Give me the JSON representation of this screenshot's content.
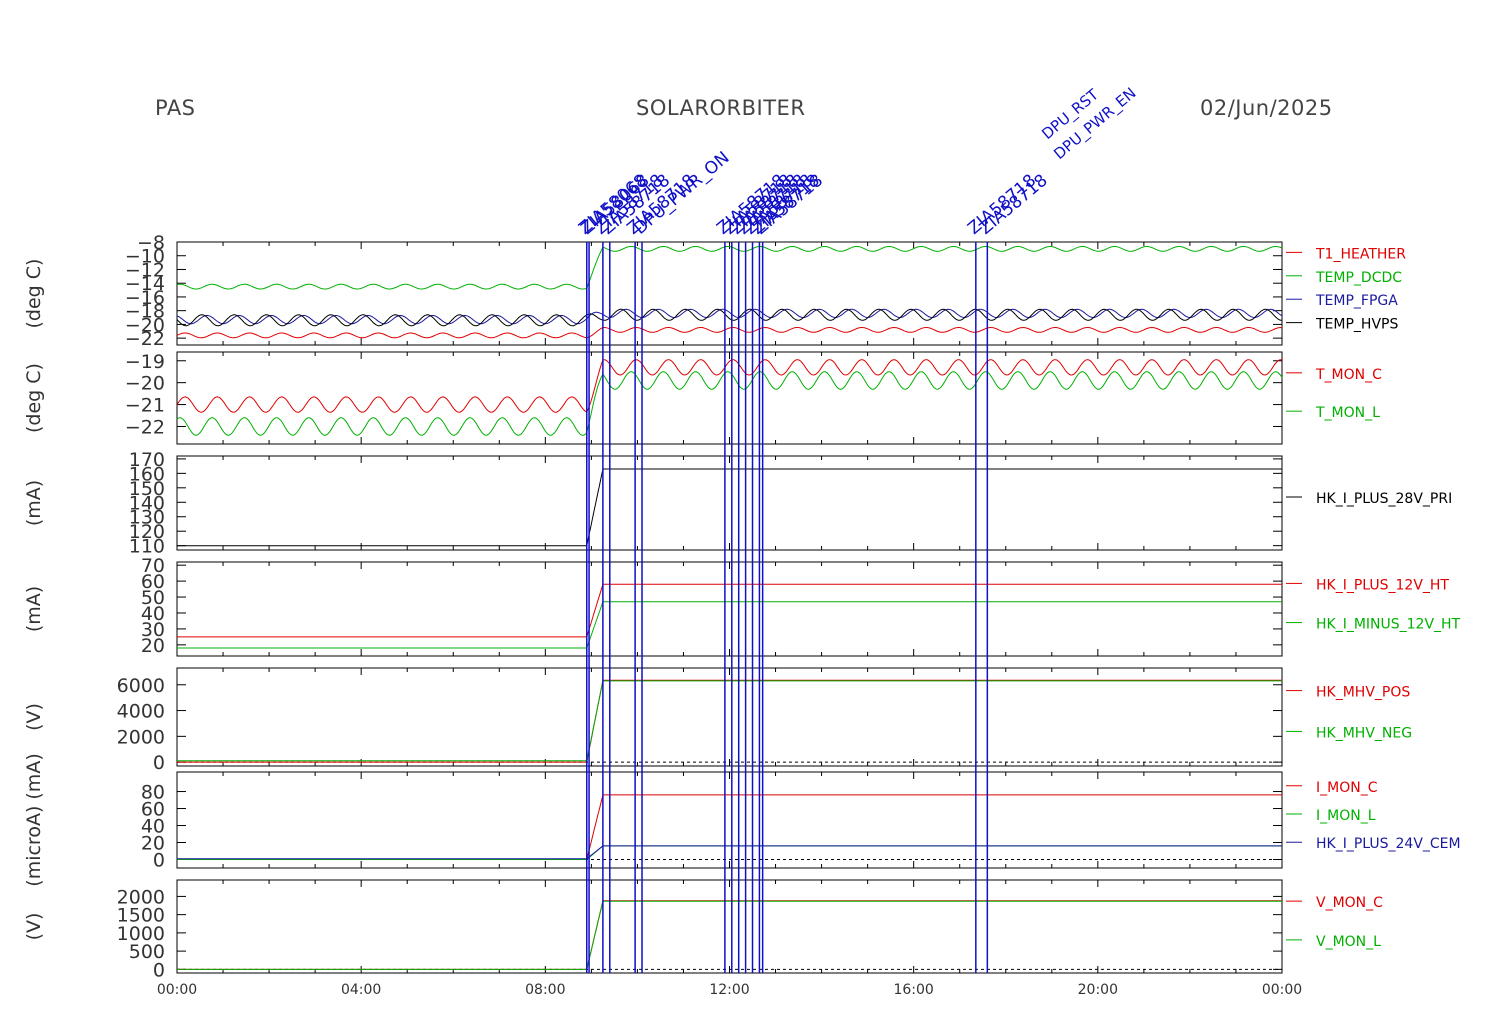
{
  "header": {
    "left": "PAS",
    "center": "SOLARORBITER",
    "right": "02/Jun/2025"
  },
  "colors": {
    "red": "#e00000",
    "green": "#00b000",
    "blue": "#1a1aa0",
    "black": "#000000",
    "marker": "#1010c8"
  },
  "chart_data": [
    {
      "type": "line",
      "ylabel": "(deg C)",
      "ylim": [
        -23,
        -8
      ],
      "yticks": [
        -8,
        -10,
        -12,
        -14,
        -16,
        -18,
        -20,
        -22
      ],
      "series": [
        {
          "name": "T1_HEATHER",
          "color": "#e00000",
          "before": -21.6,
          "after": -20.8,
          "amp": 0.35
        },
        {
          "name": "TEMP_DCDC",
          "color": "#00b000",
          "before": -14.5,
          "after": -9.0,
          "amp": 0.35
        },
        {
          "name": "TEMP_FPGA",
          "color": "#1a1aa0",
          "before": -19.3,
          "after": -18.4,
          "amp": 0.6
        },
        {
          "name": "TEMP_HVPS",
          "color": "#000000",
          "before": -19.4,
          "after": -18.6,
          "amp": 0.8
        }
      ]
    },
    {
      "type": "line",
      "ylabel": "(deg C)",
      "ylim": [
        -22.8,
        -18.6
      ],
      "yticks": [
        -19,
        -20,
        -21,
        -22
      ],
      "series": [
        {
          "name": "T_MON_C",
          "color": "#e00000",
          "before": -21.0,
          "after": -19.3,
          "amp": 0.35
        },
        {
          "name": "T_MON_L",
          "color": "#00b000",
          "before": -22.0,
          "after": -19.9,
          "amp": 0.4
        }
      ]
    },
    {
      "type": "line",
      "ylabel": "(mA)",
      "ylim": [
        107,
        172
      ],
      "yticks": [
        170,
        160,
        150,
        140,
        130,
        120,
        110
      ],
      "series": [
        {
          "name": "HK_I_PLUS_28V_PRI",
          "color": "#000000",
          "before": 110,
          "after": 163,
          "amp": 0
        }
      ]
    },
    {
      "type": "line",
      "ylabel": "(mA)",
      "ylim": [
        13,
        72
      ],
      "yticks": [
        70,
        60,
        50,
        40,
        30,
        20
      ],
      "series": [
        {
          "name": "HK_I_PLUS_12V_HT",
          "color": "#e00000",
          "before": 25,
          "after": 58,
          "amp": 0
        },
        {
          "name": "HK_I_MINUS_12V_HT",
          "color": "#00b000",
          "before": 18,
          "after": 47,
          "amp": 0
        }
      ]
    },
    {
      "type": "line",
      "ylabel": "(V)",
      "ylim": [
        -300,
        7300
      ],
      "yticks": [
        6000,
        4000,
        2000,
        0
      ],
      "series": [
        {
          "name": "HK_MHV_POS",
          "color": "#e00000",
          "before": 0,
          "after": 6350,
          "amp": 0
        },
        {
          "name": "HK_MHV_NEG",
          "color": "#00b000",
          "before": 100,
          "after": 6300,
          "amp": 0
        }
      ]
    },
    {
      "type": "line",
      "ylabel": "(microA) (mA)",
      "ylim": [
        -10,
        103
      ],
      "yticks": [
        80,
        60,
        40,
        20,
        0
      ],
      "series": [
        {
          "name": "I_MON_C",
          "color": "#e00000",
          "before": 0,
          "after": 76,
          "amp": 0
        },
        {
          "name": "I_MON_L",
          "color": "#00b000",
          "before": 0,
          "after": 16,
          "amp": 0
        },
        {
          "name": "HK_I_PLUS_24V_CEM",
          "color": "#1a1aa0",
          "before": 1,
          "after": 16,
          "amp": 0
        }
      ]
    },
    {
      "type": "line",
      "ylabel": "(V)",
      "ylim": [
        -100,
        2450
      ],
      "yticks": [
        2000,
        1500,
        1000,
        500,
        0
      ],
      "series": [
        {
          "name": "V_MON_C",
          "color": "#e00000",
          "before": 0,
          "after": 1880,
          "amp": 0
        },
        {
          "name": "V_MON_L",
          "color": "#00b000",
          "before": 0,
          "after": 1870,
          "amp": 0
        }
      ]
    }
  ],
  "x_axis": {
    "range_hours": [
      0,
      24
    ],
    "ticks": [
      {
        "hour": 0,
        "label": "00:00"
      },
      {
        "hour": 4,
        "label": "04:00"
      },
      {
        "hour": 8,
        "label": "08:00"
      },
      {
        "hour": 12,
        "label": "12:00"
      },
      {
        "hour": 16,
        "label": "16:00"
      },
      {
        "hour": 20,
        "label": "20:00"
      },
      {
        "hour": 24,
        "label": "00:00"
      }
    ]
  },
  "events": [
    {
      "hour": 8.9,
      "label": "ZIA58068"
    },
    {
      "hour": 8.95,
      "label": "ZIA58068"
    },
    {
      "hour": 9.25,
      "label": "ZIA58718"
    },
    {
      "hour": 9.4,
      "label": "ZIA58718"
    },
    {
      "hour": 9.95,
      "label": "ZIA58718"
    },
    {
      "hour": 10.1,
      "label": "DPU_PWR_ON"
    },
    {
      "hour": 11.9,
      "label": "ZIA58718"
    },
    {
      "hour": 12.05,
      "label": "ZIA58718"
    },
    {
      "hour": 12.2,
      "label": "ZIA58718"
    },
    {
      "hour": 12.35,
      "label": "ZIA58718"
    },
    {
      "hour": 12.5,
      "label": "ZIA58718"
    },
    {
      "hour": 12.65,
      "label": "ZIA58718"
    },
    {
      "hour": 12.72,
      "label": "ZIA58718"
    },
    {
      "hour": 17.35,
      "label": "ZIA58718"
    },
    {
      "hour": 17.6,
      "label": "ZIA58718"
    }
  ],
  "event_text": [
    "DPU_RST",
    "DPU_PWR_EN"
  ]
}
